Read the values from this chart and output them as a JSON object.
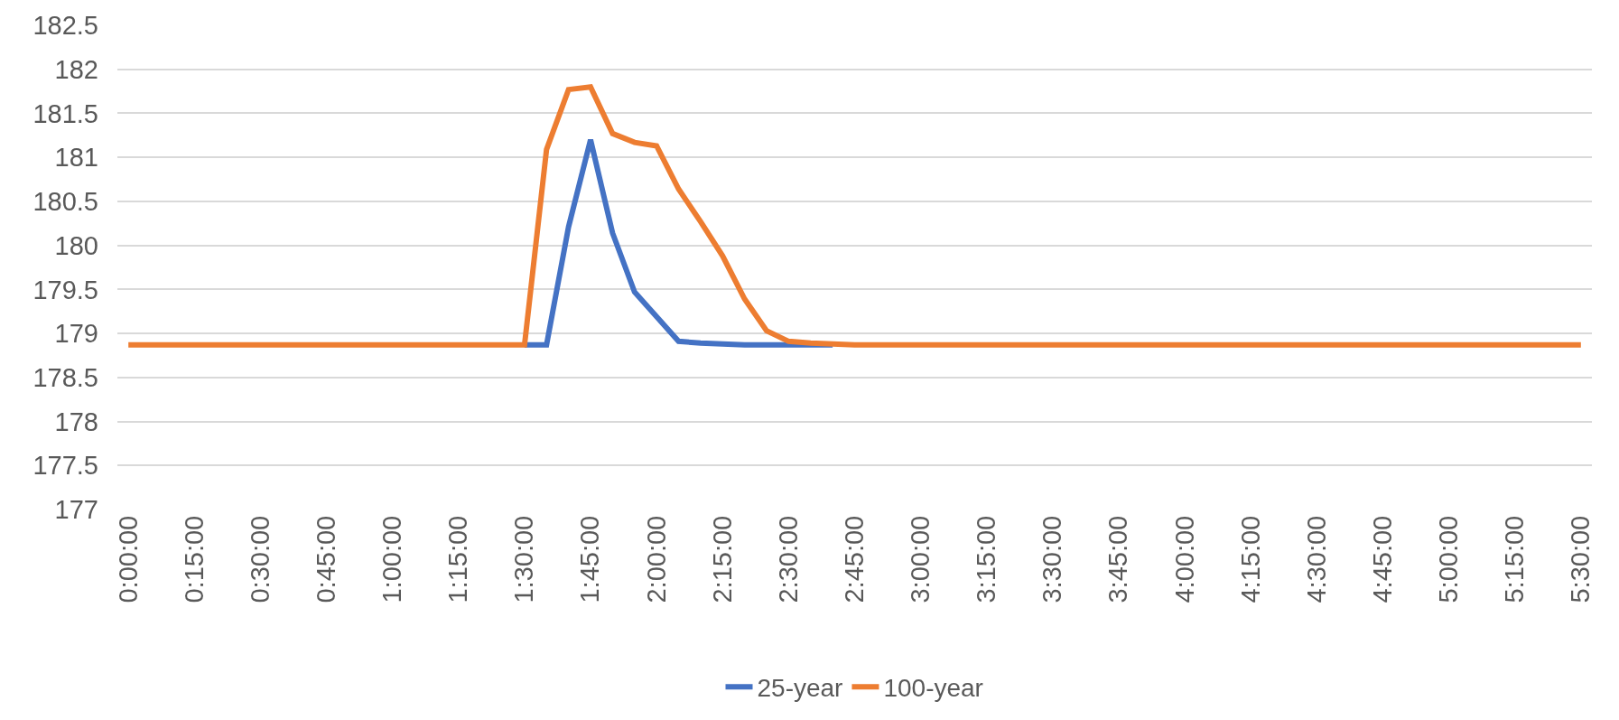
{
  "chart_data": {
    "type": "line",
    "categories": [
      "0:00:00",
      null,
      null,
      "0:15:00",
      null,
      null,
      "0:30:00",
      null,
      null,
      "0:45:00",
      null,
      null,
      "1:00:00",
      null,
      null,
      "1:15:00",
      null,
      null,
      "1:30:00",
      null,
      null,
      "1:45:00",
      null,
      null,
      "2:00:00",
      null,
      null,
      "2:15:00",
      null,
      null,
      "2:30:00",
      null,
      null,
      "2:45:00",
      null,
      null,
      "3:00:00",
      null,
      null,
      "3:15:00",
      null,
      null,
      "3:30:00",
      null,
      null,
      "3:45:00",
      null,
      null,
      "4:00:00",
      null,
      null,
      "4:15:00",
      null,
      null,
      "4:30:00",
      null,
      null,
      "4:45:00",
      null,
      null,
      "5:00:00",
      null,
      null,
      "5:15:00",
      null,
      null,
      "5:30:00"
    ],
    "series": [
      {
        "name": "25-year",
        "color": "#4472c4",
        "values": [
          null,
          null,
          null,
          null,
          null,
          null,
          null,
          null,
          null,
          null,
          null,
          null,
          null,
          null,
          null,
          null,
          null,
          null,
          178.87,
          178.87,
          180.21,
          181.2,
          180.14,
          179.47,
          179.19,
          178.91,
          178.89,
          178.88,
          178.87,
          178.87,
          178.87,
          178.87,
          178.87,
          null,
          null,
          null,
          null,
          null,
          null,
          null,
          null,
          null,
          null,
          null,
          null,
          null,
          null,
          null,
          null,
          null,
          null,
          null,
          null,
          null,
          null,
          null,
          null,
          null,
          null,
          null,
          null,
          null,
          null,
          null,
          null,
          null,
          null
        ]
      },
      {
        "name": "100-year",
        "color": "#ed7d31",
        "values": [
          178.87,
          178.87,
          178.87,
          178.87,
          178.87,
          178.87,
          178.87,
          178.87,
          178.87,
          178.87,
          178.87,
          178.87,
          178.87,
          178.87,
          178.87,
          178.87,
          178.87,
          178.87,
          178.87,
          181.09,
          181.77,
          181.8,
          181.27,
          181.17,
          181.13,
          180.64,
          180.27,
          179.88,
          179.39,
          179.03,
          178.91,
          178.89,
          178.88,
          178.87,
          178.87,
          178.87,
          178.87,
          178.87,
          178.87,
          178.87,
          178.87,
          178.87,
          178.87,
          178.87,
          178.87,
          178.87,
          178.87,
          178.87,
          178.87,
          178.87,
          178.87,
          178.87,
          178.87,
          178.87,
          178.87,
          178.87,
          178.87,
          178.87,
          178.87,
          178.87,
          178.87,
          178.87,
          178.87,
          178.87,
          178.87,
          178.87,
          178.87
        ]
      }
    ],
    "ylim": [
      177,
      182.5
    ],
    "yticks": [
      177,
      177.5,
      178,
      178.5,
      179,
      179.5,
      180,
      180.5,
      181,
      181.5,
      182,
      182.5
    ],
    "grid": "y",
    "legend": "bottom",
    "marker": "none",
    "line_style": "solid"
  }
}
